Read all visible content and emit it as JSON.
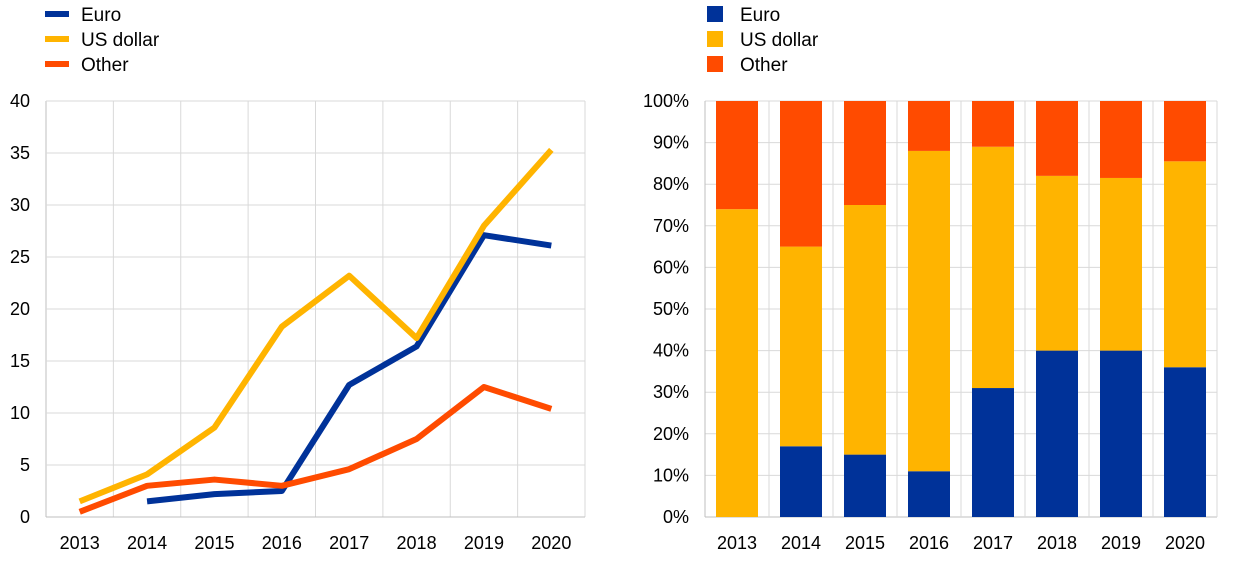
{
  "colors": {
    "euro": "#003299",
    "us_dollar": "#FFB400",
    "other": "#FF4B00",
    "grid": "#d9d9d9",
    "axis": "#bfbfbf"
  },
  "chart_data": [
    {
      "type": "line",
      "legend": [
        "Euro",
        "US dollar",
        "Other"
      ],
      "legend_position": "top-left",
      "grid": true,
      "categories": [
        "2013",
        "2014",
        "2015",
        "2016",
        "2017",
        "2018",
        "2019",
        "2020"
      ],
      "ylim": [
        0,
        40
      ],
      "yticks": [
        "0",
        "5",
        "10",
        "15",
        "20",
        "25",
        "30",
        "35",
        "40"
      ],
      "series": [
        {
          "name": "Euro",
          "color": "#003299",
          "values": [
            null,
            1.5,
            2.2,
            2.5,
            12.7,
            16.4,
            27.1,
            26.1
          ]
        },
        {
          "name": "US dollar",
          "color": "#FFB400",
          "values": [
            1.5,
            4.1,
            8.6,
            18.3,
            23.2,
            17.2,
            28.0,
            35.3
          ]
        },
        {
          "name": "Other",
          "color": "#FF4B00",
          "values": [
            0.5,
            3.0,
            3.6,
            3.0,
            4.6,
            7.5,
            12.5,
            10.4
          ]
        }
      ]
    },
    {
      "type": "bar",
      "stacked": true,
      "legend": [
        "Euro",
        "US dollar",
        "Other"
      ],
      "legend_position": "top-left",
      "grid": true,
      "categories": [
        "2013",
        "2014",
        "2015",
        "2016",
        "2017",
        "2018",
        "2019",
        "2020"
      ],
      "ylim": [
        0,
        100
      ],
      "yticks": [
        "0%",
        "10%",
        "20%",
        "30%",
        "40%",
        "50%",
        "60%",
        "70%",
        "80%",
        "90%",
        "100%"
      ],
      "series": [
        {
          "name": "Euro",
          "color": "#003299",
          "values": [
            0,
            17,
            15,
            11,
            31,
            40,
            40,
            36
          ]
        },
        {
          "name": "US dollar",
          "color": "#FFB400",
          "values": [
            74,
            48,
            60,
            77,
            58,
            42,
            41.5,
            49.5
          ]
        },
        {
          "name": "Other",
          "color": "#FF4B00",
          "values": [
            26,
            35,
            25,
            12,
            11,
            18,
            18.5,
            14.5
          ]
        }
      ]
    }
  ]
}
